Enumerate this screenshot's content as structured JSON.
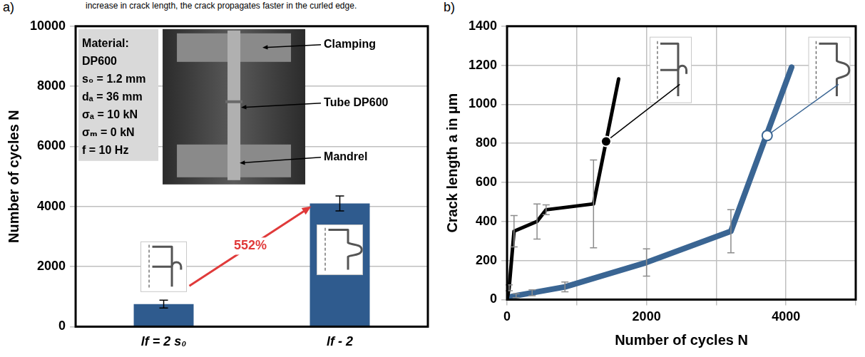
{
  "caption": "increase in crack length, the crack propagates faster in the curled edge.",
  "chart_data": [
    {
      "panel": "a)",
      "type": "bar",
      "categories": [
        "lf = 2 s₀",
        "lf - 2"
      ],
      "values": [
        750,
        4100
      ],
      "errors": [
        130,
        250
      ],
      "color": "#2f5b8e",
      "y_label": "Number of cycles N",
      "ylim": [
        0,
        10000
      ],
      "yticks": [
        0,
        2000,
        4000,
        6000,
        8000,
        10000
      ],
      "grid": true,
      "info_box": [
        "Material:",
        "DP600",
        "s₀ = 1.2 mm",
        "dₐ = 36 mm",
        "σₐ = 10 kN",
        "σₘ = 0 kN",
        "f = 10 Hz"
      ],
      "photo_labels": [
        "Clamping",
        "Tube DP600",
        "Mandrel"
      ],
      "annotations": [
        {
          "text": "552%",
          "color": "#e03a3a"
        }
      ]
    },
    {
      "panel": "b)",
      "type": "line",
      "series": [
        {
          "color": "#000000",
          "x": [
            0,
            30,
            100,
            430,
            560,
            1240,
            1600
          ],
          "values": [
            0,
            60,
            350,
            400,
            460,
            490,
            1130
          ],
          "errors": [
            0,
            15,
            80,
            90,
            25,
            225,
            0
          ]
        },
        {
          "color": "#3a6593",
          "x": [
            0,
            130,
            360,
            830,
            2000,
            3210,
            4080
          ],
          "values": [
            10,
            20,
            35,
            65,
            190,
            350,
            1190
          ],
          "errors": [
            0,
            10,
            15,
            25,
            70,
            110,
            0
          ]
        }
      ],
      "x_label": "Number of cycles N",
      "y_label": "Crack length a in µm",
      "xlim": [
        0,
        5000
      ],
      "xticks": [
        0,
        {
          "value": 1000,
          "label": null
        },
        2000,
        {
          "value": 3000,
          "label": null
        },
        4000,
        {
          "value": 5000,
          "label": null
        }
      ],
      "ylim": [
        0,
        1400
      ],
      "yticks": [
        0,
        200,
        400,
        600,
        800,
        1000,
        1200,
        1400
      ],
      "grid": true,
      "pointers": [
        {
          "series": 0,
          "x": 1420,
          "y": 810
        },
        {
          "series": 1,
          "x": 3730,
          "y": 840
        }
      ]
    }
  ]
}
